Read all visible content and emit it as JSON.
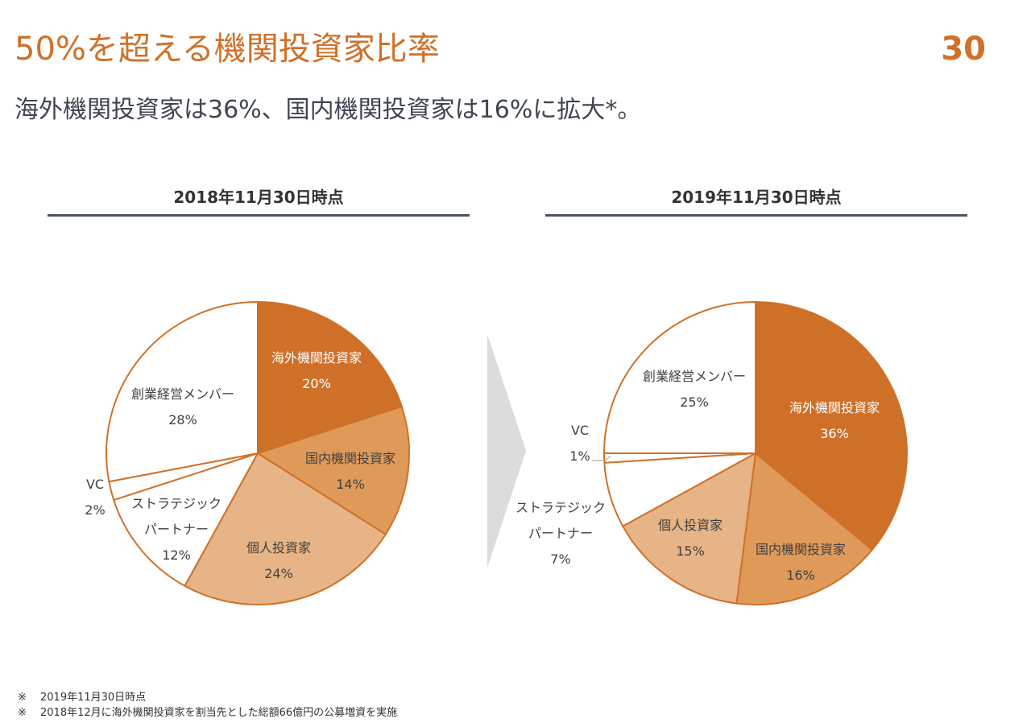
{
  "slide": {
    "title": "50%を超える機関投資家比率",
    "page_number": "30",
    "subtitle": "海外機関投資家は36%、国内機関投資家は16%に拡大*。"
  },
  "colors": {
    "accent": "#D07029",
    "overseas": "#CF7029",
    "domestic": "#DF9A59",
    "individual": "#E6B486",
    "white_slice": "#FFFFFF",
    "heading_rule": "#4B5361",
    "arrow": "#DCDCDC"
  },
  "chart_data": [
    {
      "type": "pie",
      "title": "2018年11月30日時点",
      "series": [
        {
          "name": "海外機関投資家",
          "value": 20,
          "label": "20%"
        },
        {
          "name": "国内機関投資家",
          "value": 14,
          "label": "14%"
        },
        {
          "name": "個人投資家",
          "value": 24,
          "label": "24%"
        },
        {
          "name": "ストラテジック\nパートナー",
          "value": 12,
          "label": "12%"
        },
        {
          "name": "VC",
          "value": 2,
          "label": "2%"
        },
        {
          "name": "創業経営メンバー",
          "value": 28,
          "label": "28%"
        }
      ]
    },
    {
      "type": "pie",
      "title": "2019年11月30日時点",
      "series": [
        {
          "name": "海外機関投資家",
          "value": 36,
          "label": "36%"
        },
        {
          "name": "国内機関投資家",
          "value": 16,
          "label": "16%"
        },
        {
          "name": "個人投資家",
          "value": 15,
          "label": "15%"
        },
        {
          "name": "ストラテジック\nパートナー",
          "value": 7,
          "label": "7%"
        },
        {
          "name": "VC",
          "value": 1,
          "label": "1%"
        },
        {
          "name": "創業経営メンバー",
          "value": 25,
          "label": "25%"
        }
      ]
    }
  ],
  "footnotes": [
    {
      "mark": "※",
      "text": "2019年11月30日時点"
    },
    {
      "mark": "※",
      "text": "2018年12月に海外機関投資家を割当先とした総額66億円の公募増資を実施"
    }
  ]
}
